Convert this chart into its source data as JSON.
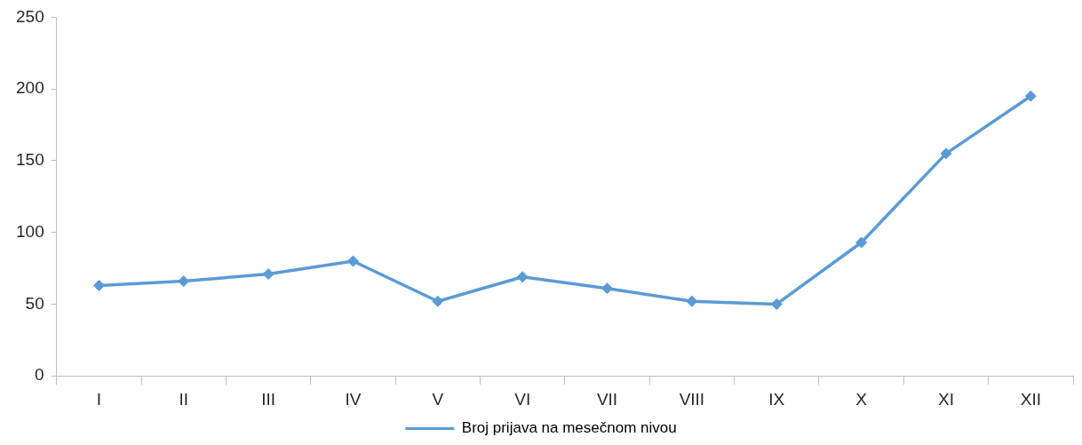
{
  "chart_data": {
    "type": "line",
    "categories": [
      "I",
      "II",
      "III",
      "IV",
      "V",
      "VI",
      "VII",
      "VIII",
      "IX",
      "X",
      "XI",
      "XII"
    ],
    "series": [
      {
        "name": "Broj prijava na mesečnom nivou",
        "color": "#5b9bd5",
        "values": [
          63,
          66,
          71,
          80,
          52,
          69,
          61,
          52,
          50,
          93,
          155,
          195
        ]
      }
    ],
    "ylim": [
      0,
      250
    ],
    "yticks": [
      0,
      50,
      100,
      150,
      200,
      250
    ],
    "grid": false,
    "legend": "bottom",
    "marker": "diamond",
    "line_style": "solid"
  }
}
